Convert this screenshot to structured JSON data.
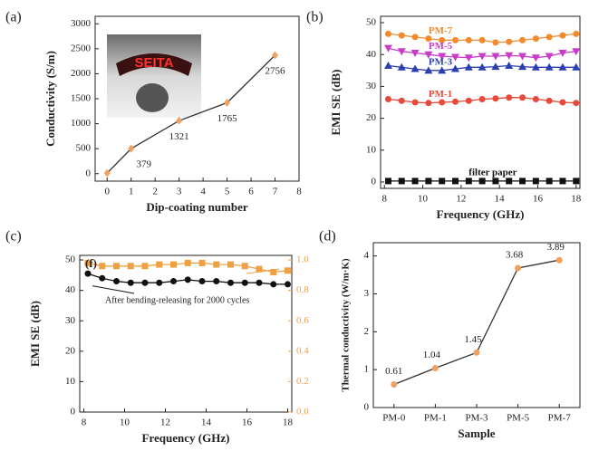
{
  "chart_data": [
    {
      "type": "line",
      "panel": "(a)",
      "xlabel": "Dip-coating number",
      "ylabel": "Conductivity (S/m)",
      "x": [
        0,
        1,
        3,
        5,
        7
      ],
      "xlim": [
        -0.5,
        8
      ],
      "xticks": [
        0,
        1,
        2,
        3,
        4,
        5,
        6,
        7,
        8
      ],
      "ylim": [
        -150,
        3150
      ],
      "yticks": [
        0,
        500,
        1000,
        1500,
        2000,
        2500,
        3000
      ],
      "series": [
        {
          "color": "#f0a060",
          "line_color": "#333333",
          "marker": "diamond",
          "values": [
            10,
            500,
            1060,
            1420,
            2370
          ]
        }
      ],
      "annotations": [
        "379",
        "1321",
        "1765",
        "2756"
      ],
      "inset_text": "SEITA"
    },
    {
      "type": "line",
      "panel": "(b)",
      "xlabel": "Frequency (GHz)",
      "ylabel": "EMI SE (dB)",
      "x": [
        8.2,
        8.9,
        9.6,
        10.3,
        11.0,
        11.7,
        12.4,
        13.1,
        13.8,
        14.5,
        15.2,
        15.9,
        16.6,
        17.3,
        18.0
      ],
      "xlim": [
        7.8,
        18.2
      ],
      "xticks": [
        8,
        10,
        12,
        14,
        16,
        18
      ],
      "ylim": [
        -2,
        52
      ],
      "yticks": [
        0,
        10,
        20,
        30,
        40,
        50
      ],
      "series": [
        {
          "name": "PM-7",
          "color": "#f28a2e",
          "marker": "circle",
          "values": [
            46.5,
            46,
            45.5,
            45,
            44.5,
            44.5,
            44.5,
            44.5,
            43.8,
            44,
            44.5,
            45,
            45.5,
            46,
            46.5
          ]
        },
        {
          "name": "PM-5",
          "color": "#c83cc8",
          "marker": "tri-down",
          "values": [
            42,
            41,
            40.5,
            40,
            39.5,
            39.2,
            39,
            39.5,
            39.5,
            39.7,
            39.5,
            39,
            39.5,
            40.5,
            41
          ]
        },
        {
          "name": "PM-3",
          "color": "#2a3fb0",
          "marker": "tri-up",
          "values": [
            36.5,
            36,
            35.5,
            35,
            35,
            35.5,
            36,
            36,
            36.2,
            36.5,
            36.2,
            36,
            36,
            36,
            36
          ]
        },
        {
          "name": "PM-1",
          "color": "#e84a3a",
          "marker": "circle",
          "values": [
            26,
            25.5,
            25,
            24.8,
            25,
            25.2,
            25.5,
            26,
            26.2,
            26.5,
            26.5,
            26,
            25.5,
            25,
            24.8
          ]
        },
        {
          "name": "filter paper",
          "color": "#111111",
          "marker": "square",
          "values": [
            0.3,
            0.3,
            0.3,
            0.3,
            0.3,
            0.3,
            0.3,
            0.3,
            0.3,
            0.3,
            0.3,
            0.3,
            0.3,
            0.3,
            0.3
          ]
        }
      ]
    },
    {
      "type": "line",
      "panel": "(c)",
      "xlabel": "Frequency (GHz)",
      "ylabel": "EMI SE (dB)",
      "x": [
        8.2,
        8.9,
        9.6,
        10.3,
        11.0,
        11.7,
        12.4,
        13.1,
        13.8,
        14.5,
        15.2,
        15.9,
        16.6,
        17.3,
        18.0
      ],
      "xlim": [
        7.8,
        18.2
      ],
      "xticks": [
        8,
        10,
        12,
        14,
        16,
        18
      ],
      "ylim": [
        0,
        51.5
      ],
      "yticks": [
        0,
        10,
        20,
        30,
        40,
        50
      ],
      "y2lim": [
        0,
        1.03
      ],
      "y2ticks": [
        {
          "value": 0,
          "label": "0.0"
        },
        0.2,
        0.4,
        0.6,
        0.8,
        {
          "value": 1,
          "label": "1.0"
        }
      ],
      "y2color": "#f0a040",
      "series": [
        {
          "color": "#111111",
          "marker": "circle",
          "values": [
            45.5,
            44,
            43,
            42.5,
            42.5,
            42.5,
            43,
            43.5,
            43,
            43,
            42.5,
            42.5,
            42.5,
            42,
            42
          ]
        },
        {
          "color": "#f0a040",
          "marker": "square",
          "axis": "y2",
          "values": [
            0.98,
            0.96,
            0.96,
            0.96,
            0.96,
            0.97,
            0.97,
            0.98,
            0.98,
            0.97,
            0.97,
            0.96,
            0.94,
            0.92,
            0.93
          ]
        }
      ],
      "inner_label": "(f)",
      "annotation": "After bending-releasing for 2000 cycles"
    },
    {
      "type": "line",
      "panel": "(d)",
      "xlabel": "Sample",
      "ylabel": "Thermal conductivity (W/m·K)",
      "categories": [
        "PM-0",
        "PM-1",
        "PM-3",
        "PM-5",
        "PM-7"
      ],
      "ylim": [
        0,
        4.35
      ],
      "yticks": [
        0,
        1,
        2,
        3,
        4
      ],
      "series": [
        {
          "color": "#f0a060",
          "line_color": "#333333",
          "marker": "circle",
          "values": [
            0.61,
            1.04,
            1.45,
            3.68,
            3.89
          ]
        }
      ],
      "show_values": true
    }
  ]
}
